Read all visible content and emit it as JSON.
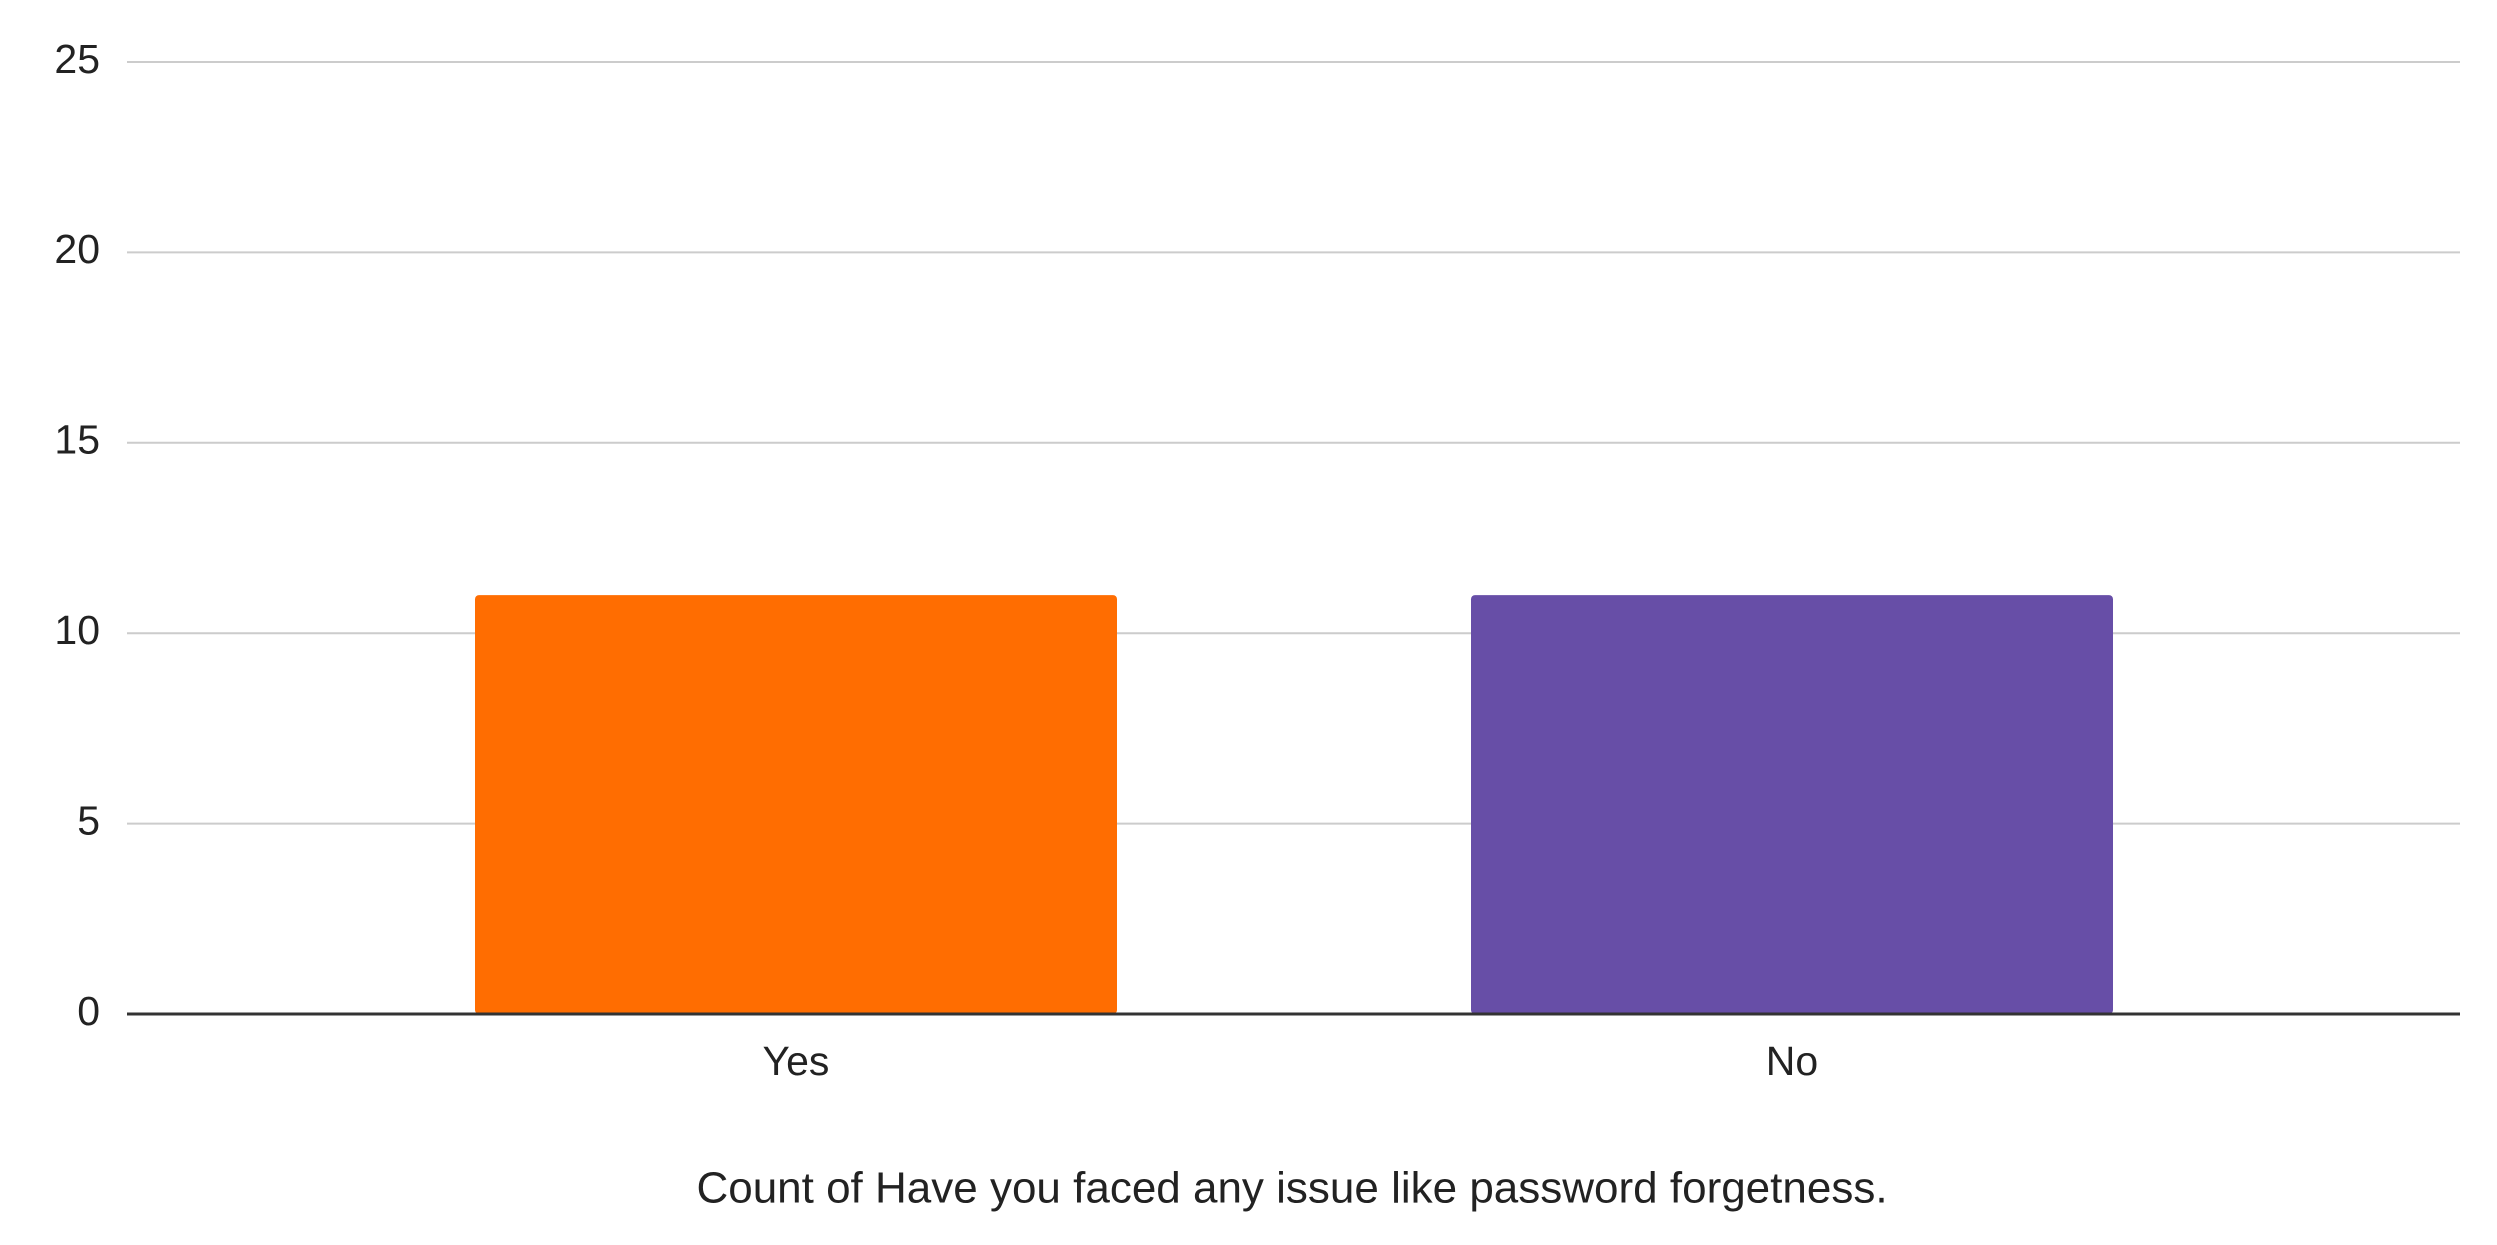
{
  "chart_data": {
    "type": "bar",
    "xlabel": "Count of Have you faced any issue like password forgetness.",
    "categories": [
      "Yes",
      "No"
    ],
    "values": [
      11,
      11
    ],
    "colors": [
      "#ff6d01",
      "#674ea7"
    ],
    "ylim": [
      0,
      25
    ],
    "yticks": [
      0,
      5,
      10,
      15,
      20,
      25
    ],
    "grid": true
  }
}
